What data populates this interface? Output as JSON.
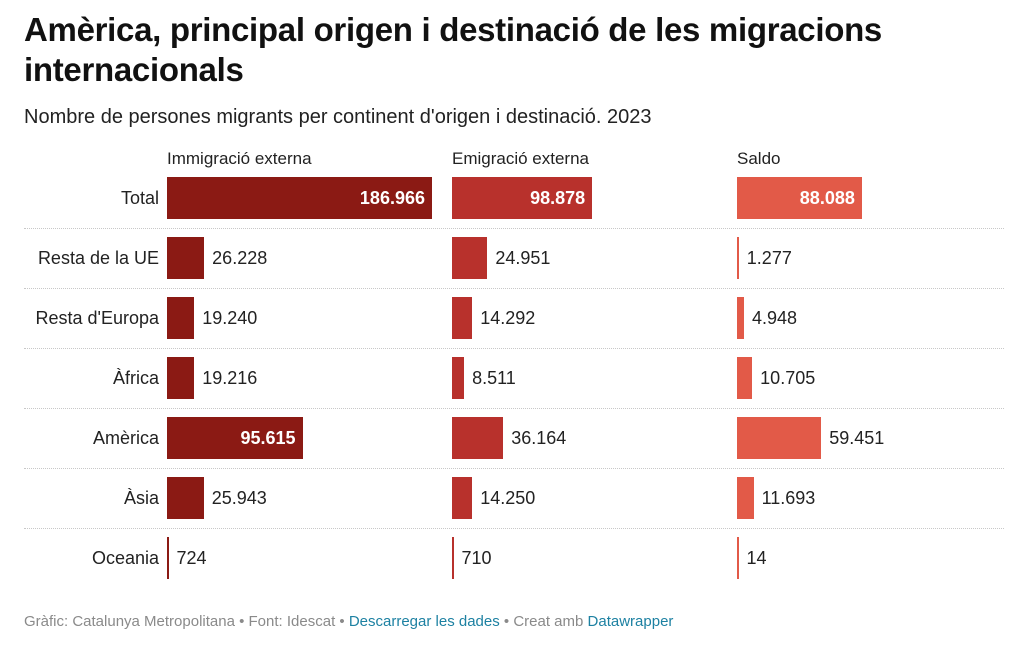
{
  "title": "Amèrica, principal origen i destinació de les migracions internacionals",
  "subtitle": "Nombre de persones migrants per continent d'origen i destinació. 2023",
  "footer": {
    "source_text": "Gràfic: Catalunya Metropolitana • Font: Idescat • ",
    "download_link": "Descarregar les dades",
    "created_text": " • Creat amb ",
    "datawrapper_link": "Datawrapper"
  },
  "colors": {
    "immigracio": "#8b1a14",
    "emigracio": "#b8312c",
    "saldo": "#e25a48"
  },
  "chart_data": {
    "type": "bar",
    "categories": [
      "Total",
      "Resta de la UE",
      "Resta d'Europa",
      "Àfrica",
      "Amèrica",
      "Àsia",
      "Oceania"
    ],
    "series": [
      {
        "name": "Immigració externa",
        "values": [
          186966,
          26228,
          19240,
          19216,
          95615,
          25943,
          724
        ],
        "labels": [
          "186.966",
          "26.228",
          "19.240",
          "19.216",
          "95.615",
          "25.943",
          "724"
        ]
      },
      {
        "name": "Emigració externa",
        "values": [
          98878,
          24951,
          14292,
          8511,
          36164,
          14250,
          710
        ],
        "labels": [
          "98.878",
          "24.951",
          "14.292",
          "8.511",
          "36.164",
          "14.250",
          "710"
        ]
      },
      {
        "name": "Saldo",
        "values": [
          88088,
          1277,
          4948,
          10705,
          59451,
          11693,
          14
        ],
        "labels": [
          "88.088",
          "1.277",
          "4.948",
          "10.705",
          "59.451",
          "11.693",
          "14"
        ]
      }
    ],
    "xlim": [
      0,
      186966
    ],
    "grid": false,
    "legend": "none"
  }
}
